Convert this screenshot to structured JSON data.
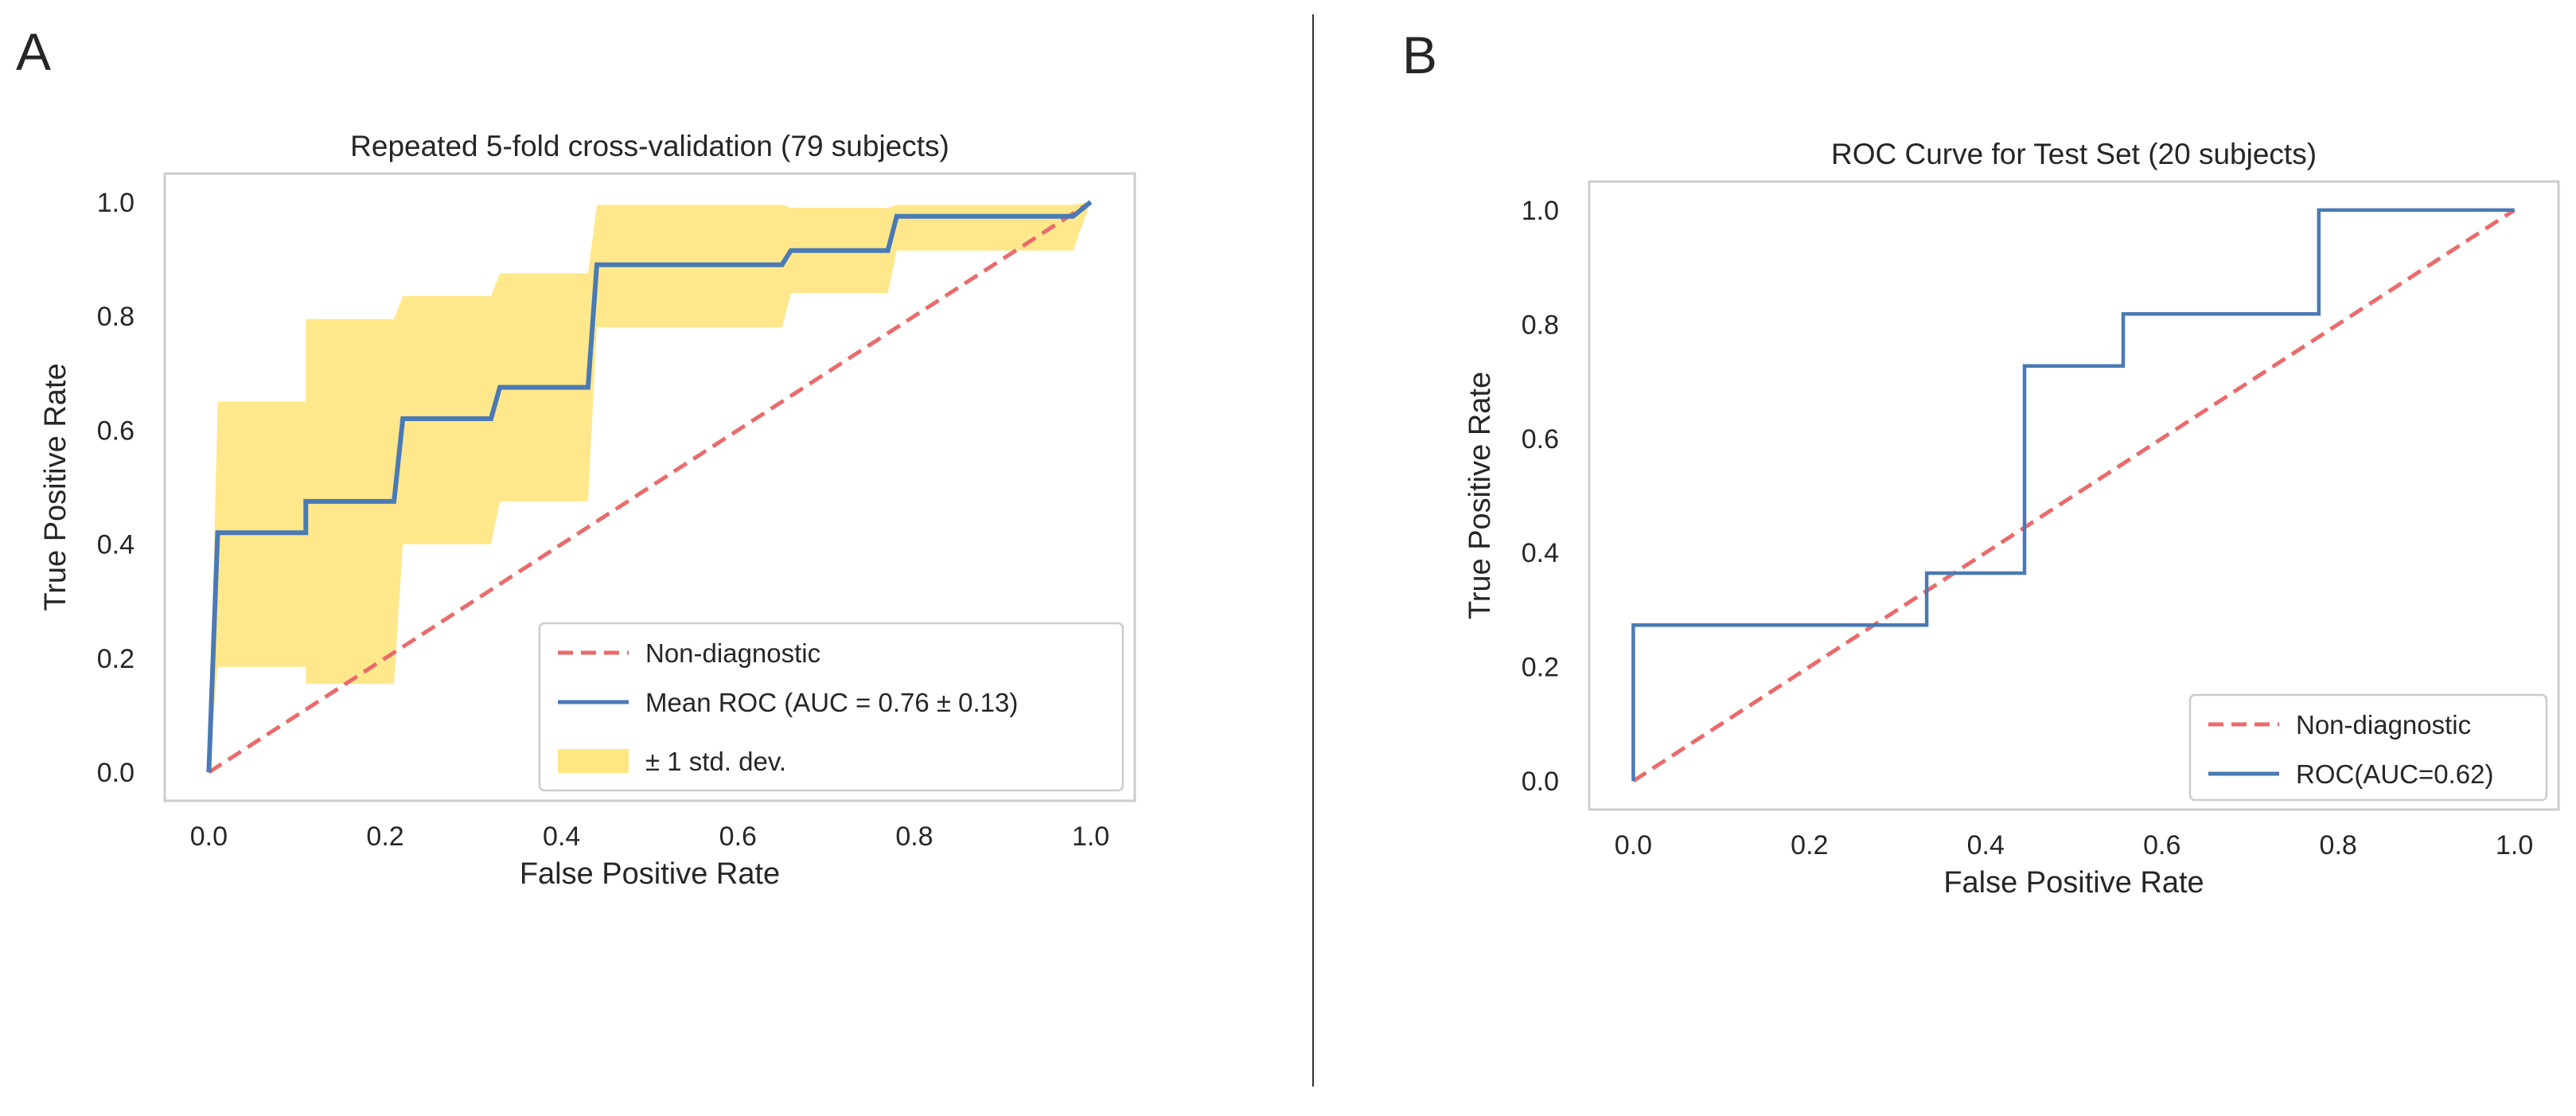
{
  "panels": [
    {
      "letter": "A",
      "chart_data": {
        "type": "line",
        "title": "Repeated 5-fold cross-validation (79 subjects)",
        "xlabel": "False Positive Rate",
        "ylabel": "True Positive Rate",
        "xlim": [
          -0.05,
          1.05
        ],
        "ylim": [
          -0.05,
          1.05
        ],
        "xticks": [
          "0.0",
          "0.2",
          "0.4",
          "0.6",
          "0.8",
          "1.0"
        ],
        "yticks": [
          "0.0",
          "0.2",
          "0.4",
          "0.6",
          "0.8",
          "1.0"
        ],
        "grid": false,
        "legend_position": "lower-right",
        "diagonal": {
          "name": "Non-diagnostic",
          "color": "#ea6b6b",
          "style": "dashed"
        },
        "series": [
          {
            "name": "Mean ROC (AUC = 0.76 ± 0.13)",
            "color": "#4a7ab5",
            "x": [
              0.0,
              0.01,
              0.11,
              0.11,
              0.21,
              0.22,
              0.32,
              0.33,
              0.43,
              0.44,
              0.65,
              0.66,
              0.77,
              0.78,
              0.98,
              1.0
            ],
            "y": [
              0.0,
              0.42,
              0.42,
              0.475,
              0.475,
              0.62,
              0.62,
              0.675,
              0.675,
              0.89,
              0.89,
              0.915,
              0.915,
              0.975,
              0.975,
              1.0
            ]
          }
        ],
        "band": {
          "name": "± 1 std. dev.",
          "color": "#ffe680",
          "x": [
            0.0,
            0.01,
            0.11,
            0.11,
            0.21,
            0.22,
            0.32,
            0.33,
            0.43,
            0.44,
            0.65,
            0.66,
            0.77,
            0.78,
            0.98,
            1.0
          ],
          "upper": [
            0.0,
            0.65,
            0.65,
            0.795,
            0.795,
            0.835,
            0.835,
            0.875,
            0.875,
            0.995,
            0.995,
            0.99,
            0.99,
            0.995,
            0.995,
            1.0
          ],
          "lower": [
            0.0,
            0.185,
            0.185,
            0.155,
            0.155,
            0.4,
            0.4,
            0.475,
            0.475,
            0.78,
            0.78,
            0.84,
            0.84,
            0.915,
            0.915,
            1.0
          ]
        }
      }
    },
    {
      "letter": "B",
      "chart_data": {
        "type": "line",
        "title": "ROC Curve for Test Set (20 subjects)",
        "xlabel": "False Positive Rate",
        "ylabel": "True Positive Rate",
        "xlim": [
          -0.05,
          1.05
        ],
        "ylim": [
          -0.05,
          1.05
        ],
        "xticks": [
          "0.0",
          "0.2",
          "0.4",
          "0.6",
          "0.8",
          "1.0"
        ],
        "yticks": [
          "0.0",
          "0.2",
          "0.4",
          "0.6",
          "0.8",
          "1.0"
        ],
        "grid": false,
        "legend_position": "lower-right",
        "diagonal": {
          "name": "Non-diagnostic",
          "color": "#ea6b6b",
          "style": "dashed"
        },
        "series": [
          {
            "name": "ROC(AUC=0.62)",
            "color": "#4a7ab5",
            "x": [
              0.0,
              0.0,
              0.333,
              0.333,
              0.444,
              0.444,
              0.556,
              0.556,
              0.778,
              0.778,
              1.0
            ],
            "y": [
              0.0,
              0.273,
              0.273,
              0.364,
              0.364,
              0.727,
              0.727,
              0.818,
              0.818,
              1.0,
              1.0
            ]
          }
        ]
      }
    }
  ]
}
